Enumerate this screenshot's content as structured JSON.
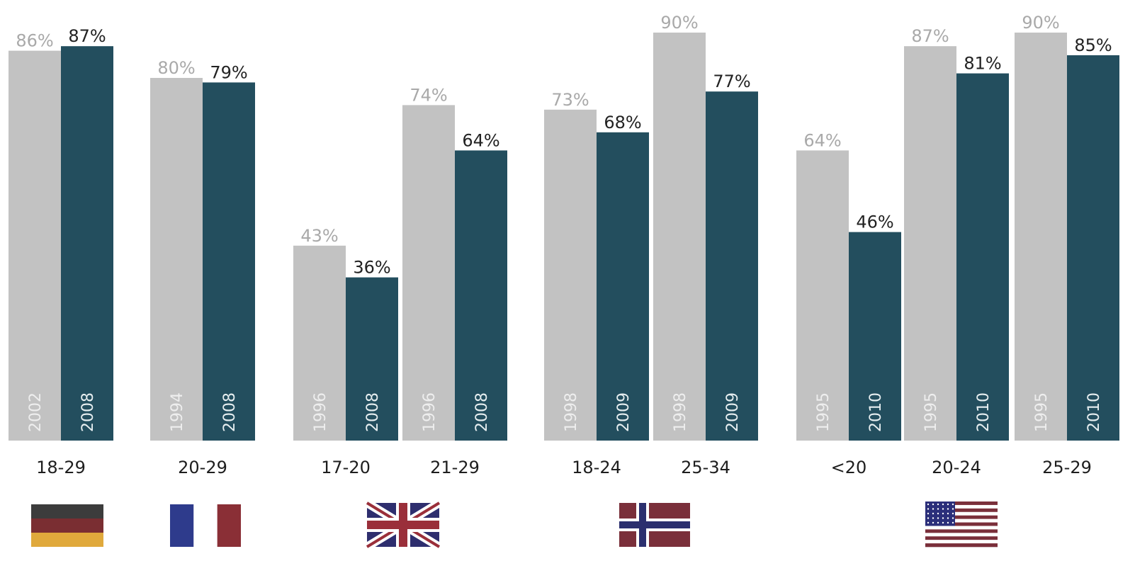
{
  "chart_data": {
    "type": "bar",
    "ylim": [
      0,
      100
    ],
    "value_suffix": "%",
    "colors": {
      "earlier": "#c2c2c2",
      "later": "#234e5e"
    },
    "groups": [
      {
        "label": "18-29",
        "country": "Germany",
        "bars": [
          {
            "year": "2002",
            "value": 86
          },
          {
            "year": "2008",
            "value": 87
          }
        ]
      },
      {
        "label": "20-29",
        "country": "France",
        "bars": [
          {
            "year": "1994",
            "value": 80
          },
          {
            "year": "2008",
            "value": 79
          }
        ]
      },
      {
        "label": "17-20",
        "country": "United Kingdom",
        "bars": [
          {
            "year": "1996",
            "value": 43
          },
          {
            "year": "2008",
            "value": 36
          }
        ]
      },
      {
        "label": "21-29",
        "country": "United Kingdom",
        "bars": [
          {
            "year": "1996",
            "value": 74
          },
          {
            "year": "2008",
            "value": 64
          }
        ]
      },
      {
        "label": "18-24",
        "country": "Norway",
        "bars": [
          {
            "year": "1998",
            "value": 73
          },
          {
            "year": "2009",
            "value": 68
          }
        ]
      },
      {
        "label": "25-34",
        "country": "Norway",
        "bars": [
          {
            "year": "1998",
            "value": 90
          },
          {
            "year": "2009",
            "value": 77
          }
        ]
      },
      {
        "label": "<20",
        "country": "United States",
        "bars": [
          {
            "year": "1995",
            "value": 64
          },
          {
            "year": "2010",
            "value": 46
          }
        ]
      },
      {
        "label": "20-24",
        "country": "United States",
        "bars": [
          {
            "year": "1995",
            "value": 87
          },
          {
            "year": "2010",
            "value": 81
          }
        ]
      },
      {
        "label": "25-29",
        "country": "United States",
        "bars": [
          {
            "year": "1995",
            "value": 90
          },
          {
            "year": "2010",
            "value": 85
          }
        ]
      }
    ]
  },
  "flags": [
    {
      "name": "germany-flag-icon",
      "colors": [
        "#3c3c3c",
        "#7a2e32",
        "#e0a93c"
      ]
    },
    {
      "name": "france-flag-icon",
      "colors": [
        "#2e3b8c",
        "#ffffff",
        "#8a2f36"
      ]
    },
    {
      "name": "uk-flag-icon",
      "colors": [
        "#2e2e6e",
        "#ffffff",
        "#9a2f3a"
      ]
    },
    {
      "name": "norway-flag-icon",
      "colors": [
        "#7a2f3a",
        "#ffffff",
        "#2b2f6e"
      ]
    },
    {
      "name": "usa-flag-icon",
      "colors": [
        "#7a2f3a",
        "#ffffff",
        "#2b2f7a"
      ]
    }
  ]
}
